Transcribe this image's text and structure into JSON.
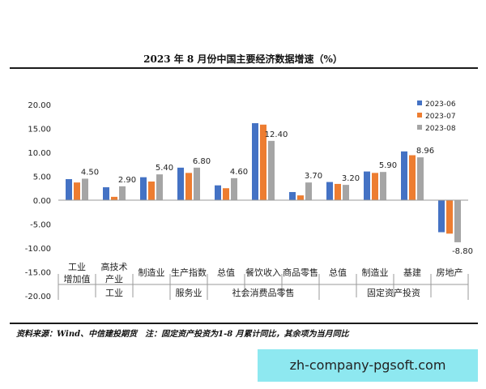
{
  "chart_data": {
    "type": "bar",
    "title": "2023 年 8 月份中国主要经济数据增速（%）",
    "ylim": [
      -20,
      20
    ],
    "yticks": [
      "20.00",
      "15.00",
      "10.00",
      "5.00",
      "0.00",
      "-5.00",
      "-10.00",
      "-15.00",
      "-20.00"
    ],
    "grid": false,
    "legend_position": "top-right",
    "categories": [
      [
        "工业",
        "增加值"
      ],
      [
        "高技术",
        "产业"
      ],
      [
        "制造业"
      ],
      [
        "生产指数"
      ],
      [
        "总值"
      ],
      [
        "餐饮收入"
      ],
      [
        "商品零售"
      ],
      [
        "总值"
      ],
      [
        "制造业"
      ],
      [
        "基建"
      ],
      [
        "房地产"
      ]
    ],
    "groups": [
      {
        "label": "工业",
        "span": [
          0,
          2
        ]
      },
      {
        "label": "服务业",
        "span": [
          3,
          3
        ]
      },
      {
        "label": "社会消费品零售",
        "span": [
          4,
          6
        ]
      },
      {
        "label": "固定资产投资",
        "span": [
          7,
          10
        ]
      }
    ],
    "series": [
      {
        "name": "2023-06",
        "color": "#4472c4",
        "values": [
          4.4,
          2.7,
          4.8,
          6.8,
          3.1,
          16.1,
          1.7,
          3.8,
          6.0,
          10.2,
          -6.7
        ]
      },
      {
        "name": "2023-07",
        "color": "#ed7d31",
        "values": [
          3.7,
          0.7,
          3.9,
          5.7,
          2.5,
          15.8,
          1.0,
          3.4,
          5.7,
          9.4,
          -7.0
        ]
      },
      {
        "name": "2023-08",
        "color": "#a5a5a5",
        "values": [
          4.5,
          2.9,
          5.4,
          6.8,
          4.6,
          12.4,
          3.7,
          3.2,
          5.9,
          8.96,
          -8.8
        ]
      }
    ],
    "data_labels": [
      "4.50",
      "2.90",
      "5.40",
      "6.80",
      "4.60",
      "12.40",
      "3.70",
      "3.20",
      "5.90",
      "8.96",
      "-8.80"
    ]
  },
  "source_note": "资料来源：Wind、中信建投期货　注：固定资产投资为1-8 月累计同比，其余项为当月同比",
  "watermark": "zh-company-pgsoft.com"
}
